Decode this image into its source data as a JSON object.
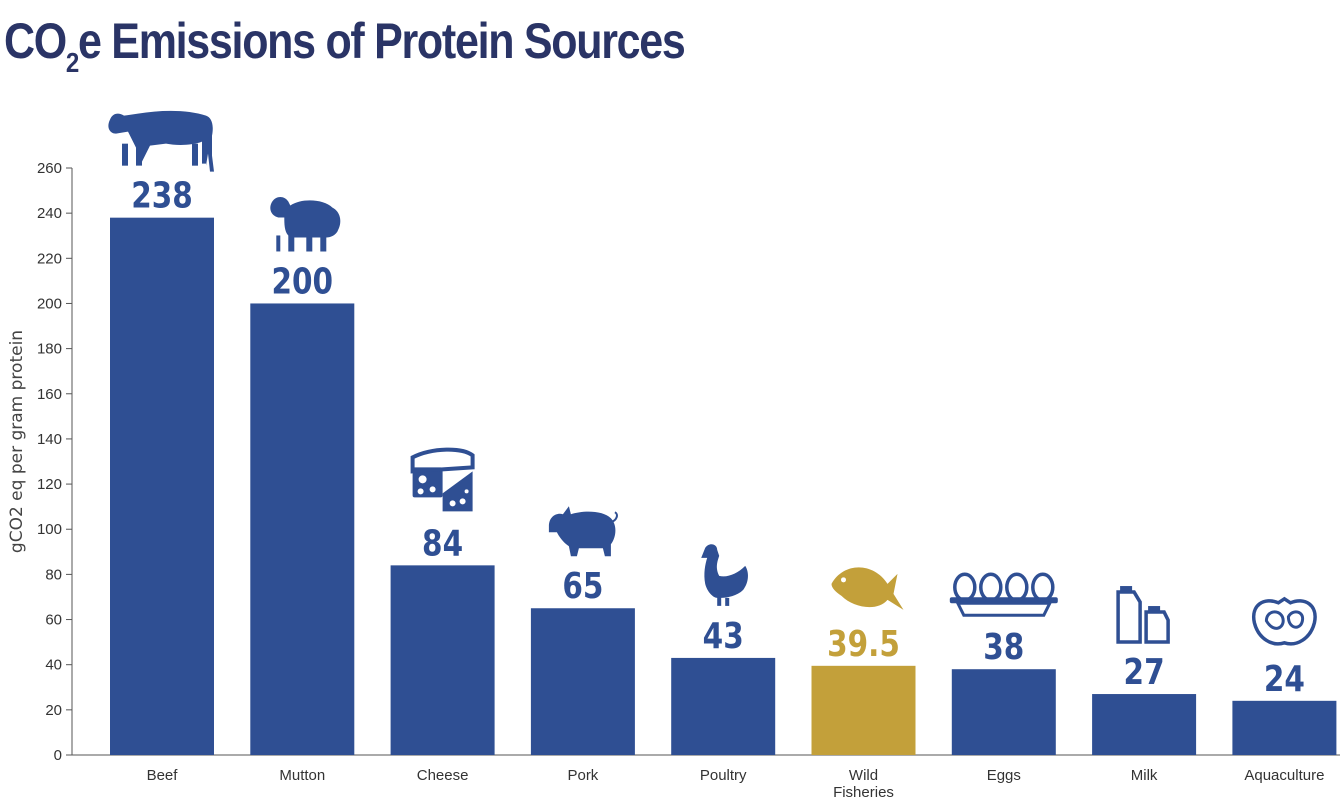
{
  "title": {
    "main": "CO",
    "sub": "2",
    "rest": "e Emissions of Protein Sources"
  },
  "colors": {
    "bar": "#2f4f93",
    "highlight": "#c3a03a",
    "title": "#2a3466",
    "axis": "#555555"
  },
  "chart_data": {
    "type": "bar",
    "ylabel": "gCO2 eq per gram protein",
    "ylim": [
      0,
      260
    ],
    "yticks": [
      0,
      20,
      40,
      60,
      80,
      100,
      120,
      140,
      160,
      180,
      200,
      220,
      240,
      260
    ],
    "ytick_labels": [
      "0",
      "20",
      "40",
      "60",
      "80",
      "100",
      "120",
      "140",
      "160",
      "180",
      "200",
      "220",
      "240",
      "260"
    ],
    "grid": false,
    "categories": [
      {
        "name": "Beef",
        "label": [
          "Beef"
        ],
        "value": 238,
        "value_label": "238",
        "icon": "cow-icon",
        "highlight": false
      },
      {
        "name": "Mutton",
        "label": [
          "Mutton"
        ],
        "value": 200,
        "value_label": "200",
        "icon": "sheep-icon",
        "highlight": false
      },
      {
        "name": "Cheese",
        "label": [
          "Cheese"
        ],
        "value": 84,
        "value_label": "84",
        "icon": "cheese-icon",
        "highlight": false
      },
      {
        "name": "Pork",
        "label": [
          "Pork"
        ],
        "value": 65,
        "value_label": "65",
        "icon": "pig-icon",
        "highlight": false
      },
      {
        "name": "Poultry",
        "label": [
          "Poultry"
        ],
        "value": 43,
        "value_label": "43",
        "icon": "chicken-icon",
        "highlight": false
      },
      {
        "name": "Wild Fisheries",
        "label": [
          "Wild",
          "Fisheries"
        ],
        "value": 39.5,
        "value_label": "39.5",
        "icon": "fish-icon",
        "highlight": true
      },
      {
        "name": "Eggs",
        "label": [
          "Eggs"
        ],
        "value": 38,
        "value_label": "38",
        "icon": "eggs-icon",
        "highlight": false
      },
      {
        "name": "Milk",
        "label": [
          "Milk"
        ],
        "value": 27,
        "value_label": "27",
        "icon": "milk-icon",
        "highlight": false
      },
      {
        "name": "Aquaculture",
        "label": [
          "Aquaculture"
        ],
        "value": 24,
        "value_label": "24",
        "icon": "oyster-icon",
        "highlight": false
      }
    ]
  }
}
